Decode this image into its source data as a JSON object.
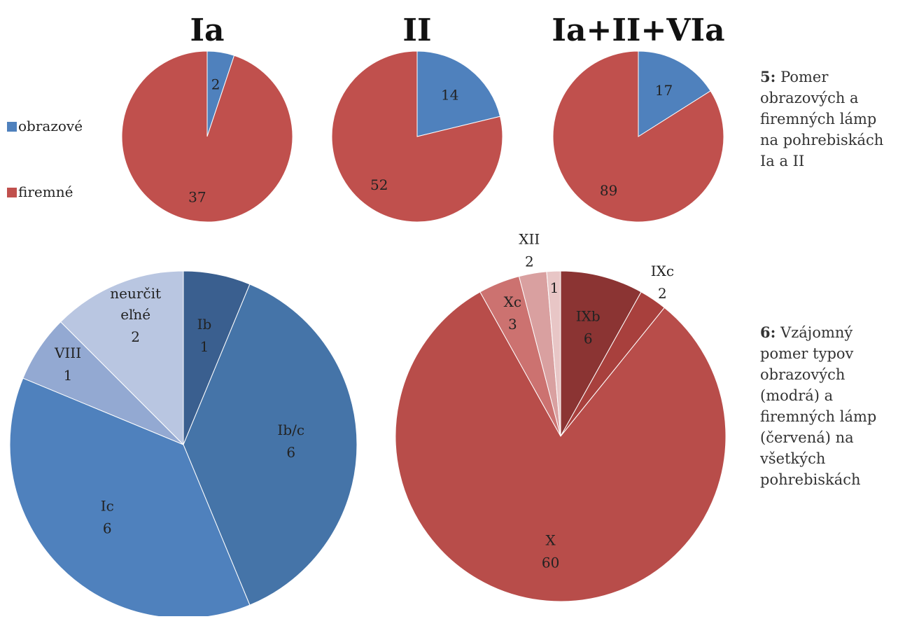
{
  "legend": [
    {
      "label": "obrazové",
      "color": "#4f81bd"
    },
    {
      "label": "firemné",
      "color": "#c0504d"
    }
  ],
  "captions": {
    "c5": {
      "num": "5:",
      "text": "Pomer obrazových a firemných lámp na pohrebiskách Ia a II"
    },
    "c6": {
      "num": "6:",
      "text": "Vzájomný pomer typov obrazových (modrá) a firemných lámp (červená) na všetkých pohrebiskách"
    }
  },
  "chart_data": [
    {
      "type": "pie",
      "title": "Ia",
      "slices": [
        {
          "label": "",
          "category": "obrazové",
          "value": 2,
          "color": "#4f81bd"
        },
        {
          "label": "",
          "category": "firemné",
          "value": 37,
          "color": "#c0504d"
        }
      ]
    },
    {
      "type": "pie",
      "title": "II",
      "slices": [
        {
          "label": "",
          "category": "obrazové",
          "value": 14,
          "color": "#4f81bd"
        },
        {
          "label": "",
          "category": "firemné",
          "value": 52,
          "color": "#c0504d"
        }
      ]
    },
    {
      "type": "pie",
      "title": "Ia+II+VIa",
      "slices": [
        {
          "label": "",
          "category": "obrazové",
          "value": 17,
          "color": "#4f81bd"
        },
        {
          "label": "",
          "category": "firemné",
          "value": 89,
          "color": "#c0504d"
        }
      ]
    },
    {
      "type": "pie",
      "title": "",
      "slices": [
        {
          "label": "Ib",
          "value": 1,
          "color": "#3a5f8f"
        },
        {
          "label": "Ib/c",
          "value": 6,
          "color": "#4574a8"
        },
        {
          "label": "Ic",
          "value": 6,
          "color": "#4f81bd"
        },
        {
          "label": "VIII",
          "value": 1,
          "color": "#93a9d2"
        },
        {
          "label": "neurčiteľné",
          "value": 2,
          "color": "#b9c6e1"
        }
      ]
    },
    {
      "type": "pie",
      "title": "",
      "slices": [
        {
          "label": "IXb",
          "value": 6,
          "color": "#8b3433"
        },
        {
          "label": "IXc",
          "value": 2,
          "color": "#a8403d"
        },
        {
          "label": "X",
          "value": 60,
          "color": "#b84d4a"
        },
        {
          "label": "Xc",
          "value": 3,
          "color": "#cc7270"
        },
        {
          "label": "XII",
          "value": 2,
          "color": "#d9a0a0"
        },
        {
          "label": "",
          "value": 1,
          "color": "#e8c6c6"
        }
      ]
    }
  ]
}
